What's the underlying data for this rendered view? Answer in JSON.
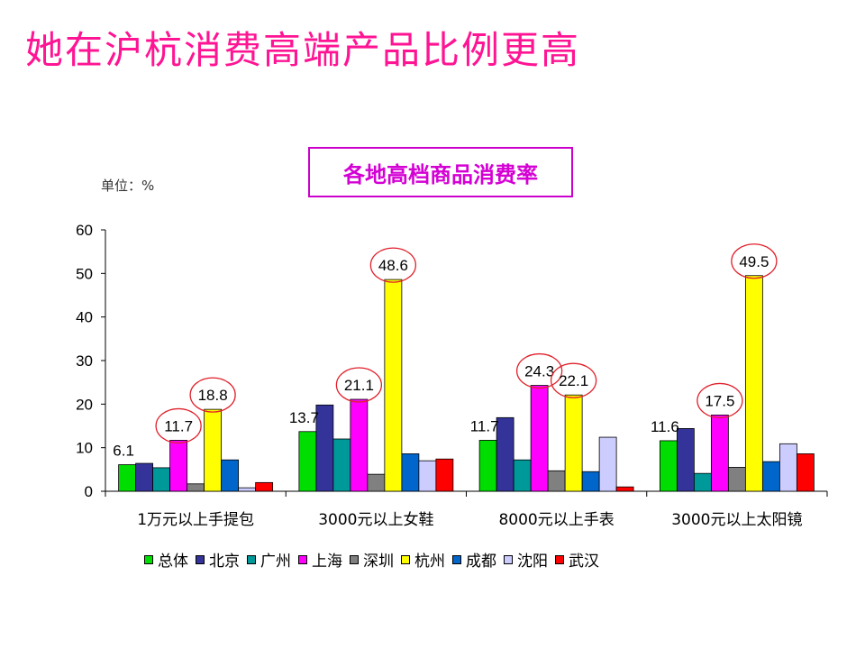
{
  "slide": {
    "title": "她在沪杭消费高端产品比例更高"
  },
  "chart_data": {
    "type": "bar",
    "title": "各地高档商品消费率",
    "unit_label": "单位：%",
    "ylim": [
      0,
      60
    ],
    "yticks": [
      0,
      10,
      20,
      30,
      40,
      50,
      60
    ],
    "categories": [
      "1万元以上手提包",
      "3000元以上女鞋",
      "8000元以上手表",
      "3000元以上太阳镜"
    ],
    "series": [
      {
        "name": "总体",
        "color": "#00dd00",
        "values": [
          6.1,
          13.7,
          11.7,
          11.6
        ]
      },
      {
        "name": "北京",
        "color": "#333399",
        "values": [
          6.4,
          19.8,
          16.9,
          14.4
        ]
      },
      {
        "name": "广州",
        "color": "#009999",
        "values": [
          5.4,
          12.0,
          7.2,
          4.1
        ]
      },
      {
        "name": "上海",
        "color": "#ff00ff",
        "values": [
          11.7,
          21.1,
          24.3,
          17.5
        ]
      },
      {
        "name": "深圳",
        "color": "#808080",
        "values": [
          1.7,
          3.9,
          4.7,
          5.5
        ]
      },
      {
        "name": "杭州",
        "color": "#ffff00",
        "values": [
          18.8,
          48.6,
          22.1,
          49.5
        ]
      },
      {
        "name": "成都",
        "color": "#0066cc",
        "values": [
          7.2,
          8.6,
          4.5,
          6.8
        ]
      },
      {
        "name": "沈阳",
        "color": "#ccccff",
        "values": [
          0.8,
          7.0,
          12.4,
          10.9
        ]
      },
      {
        "name": "武汉",
        "color": "#ff0000",
        "values": [
          2.0,
          7.4,
          1.0,
          8.6
        ]
      }
    ],
    "data_labels": [
      {
        "category": 0,
        "series": 0,
        "text": "6.1",
        "circled": false
      },
      {
        "category": 0,
        "series": 3,
        "text": "11.7",
        "circled": true
      },
      {
        "category": 0,
        "series": 5,
        "text": "18.8",
        "circled": true
      },
      {
        "category": 1,
        "series": 0,
        "text": "13.7",
        "circled": false
      },
      {
        "category": 1,
        "series": 3,
        "text": "21.1",
        "circled": true
      },
      {
        "category": 1,
        "series": 5,
        "text": "48.6",
        "circled": true
      },
      {
        "category": 2,
        "series": 0,
        "text": "11.7",
        "circled": false
      },
      {
        "category": 2,
        "series": 3,
        "text": "24.3",
        "circled": true
      },
      {
        "category": 2,
        "series": 5,
        "text": "22.1",
        "circled": true
      },
      {
        "category": 3,
        "series": 0,
        "text": "11.6",
        "circled": false
      },
      {
        "category": 3,
        "series": 3,
        "text": "17.5",
        "circled": true
      },
      {
        "category": 3,
        "series": 5,
        "text": "49.5",
        "circled": true
      }
    ],
    "legend_position": "bottom"
  }
}
